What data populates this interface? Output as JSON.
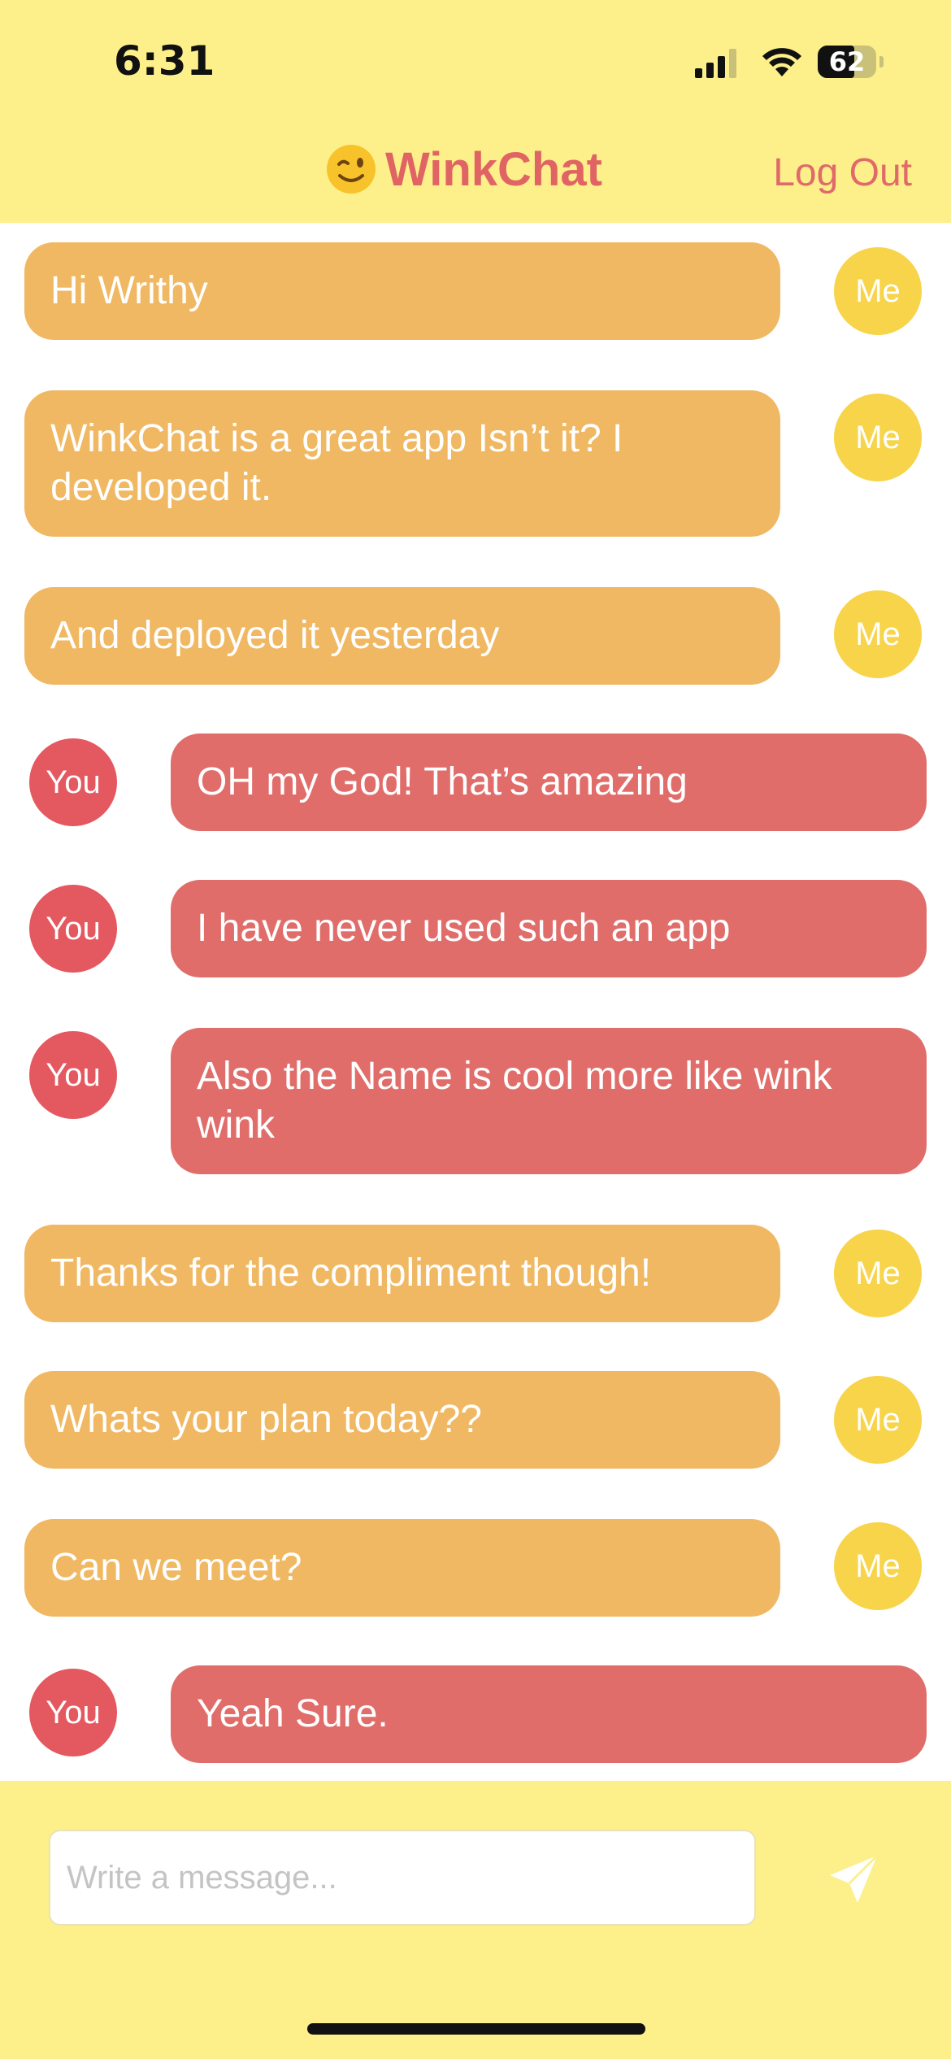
{
  "status_bar": {
    "time": "6:31",
    "battery": "62"
  },
  "header": {
    "title": "WinkChat",
    "logout_label": "Log Out"
  },
  "messages": [
    {
      "sender": "Me",
      "text": "Hi Writhy"
    },
    {
      "sender": "Me",
      "text": "WinkChat is a great app Isn’t it? I developed it."
    },
    {
      "sender": "Me",
      "text": "And deployed it yesterday"
    },
    {
      "sender": "You",
      "text": "OH my God! That’s amazing"
    },
    {
      "sender": "You",
      "text": "I have never used such an app"
    },
    {
      "sender": "You",
      "text": "Also the Name is cool more like wink wink"
    },
    {
      "sender": "Me",
      "text": "Thanks for the compliment though!"
    },
    {
      "sender": "Me",
      "text": "Whats your plan today??"
    },
    {
      "sender": "Me",
      "text": "Can we meet?"
    },
    {
      "sender": "You",
      "text": "Yeah Sure."
    }
  ],
  "composer": {
    "placeholder": "Write a message..."
  },
  "colors": {
    "header_bg": "#fdf08a",
    "me_bubble": "#f0b862",
    "you_bubble": "#e06d6a",
    "me_avatar": "#f7d44a",
    "you_avatar": "#e45860",
    "brand": "#e06464"
  }
}
